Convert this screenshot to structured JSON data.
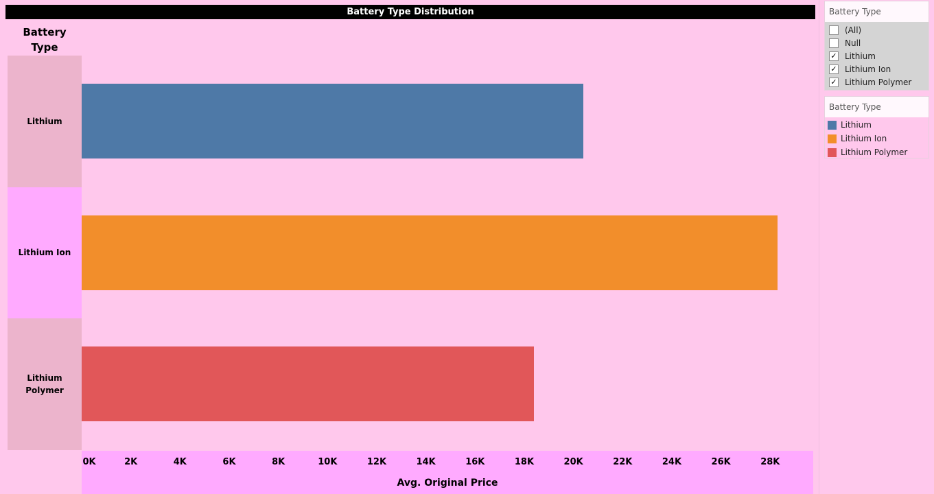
{
  "chart_data": {
    "type": "bar",
    "orientation": "horizontal",
    "title": "Battery Type Distribution",
    "row_header": [
      "Battery",
      "Type"
    ],
    "categories": [
      "Lithium",
      "Lithium Ion",
      "Lithium Polymer"
    ],
    "category_lines": [
      [
        "Lithium"
      ],
      [
        "Lithium Ion"
      ],
      [
        "Lithium",
        "Polymer"
      ]
    ],
    "values": [
      20400,
      28300,
      18400
    ],
    "colors": [
      "#4e79a7",
      "#f28e2b",
      "#e15759"
    ],
    "row_colors": [
      "#ecb4cc",
      "#ffaaff",
      "#ecb4cc"
    ],
    "xlabel": "Avg. Original Price",
    "xlim": [
      0,
      29750
    ],
    "xticks": [
      0,
      2000,
      4000,
      6000,
      8000,
      10000,
      12000,
      14000,
      16000,
      18000,
      20000,
      22000,
      24000,
      26000,
      28000
    ],
    "xtick_labels": [
      "0K",
      "2K",
      "4K",
      "6K",
      "8K",
      "10K",
      "12K",
      "14K",
      "16K",
      "18K",
      "20K",
      "22K",
      "24K",
      "26K",
      "28K"
    ],
    "grid": false
  },
  "filter": {
    "title": "Battery Type",
    "items": [
      {
        "label": "(All)",
        "checked": false
      },
      {
        "label": "Null",
        "checked": false
      },
      {
        "label": "Lithium",
        "checked": true
      },
      {
        "label": "Lithium Ion",
        "checked": true
      },
      {
        "label": "Lithium Polymer",
        "checked": true
      }
    ]
  },
  "legend": {
    "title": "Battery Type",
    "items": [
      {
        "label": "Lithium",
        "color": "#4e79a7"
      },
      {
        "label": "Lithium Ion",
        "color": "#f28e2b"
      },
      {
        "label": "Lithium Polymer",
        "color": "#e15759"
      }
    ]
  }
}
